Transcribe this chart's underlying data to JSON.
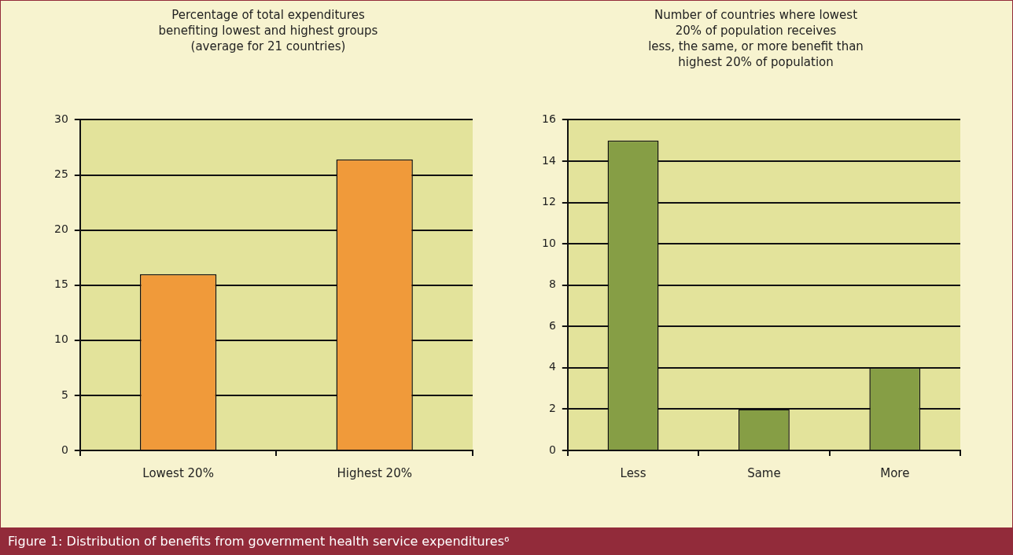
{
  "chart_data": [
    {
      "type": "bar",
      "title": "Percentage of total expenditures\nbenefiting lowest and highest groups\n(average for 21 countries)",
      "categories": [
        "Lowest 20%",
        "Highest 20%"
      ],
      "values": [
        16,
        26.4
      ],
      "color": "#f09a3a",
      "ylim": [
        0,
        30
      ],
      "yticks": [
        0,
        5,
        10,
        15,
        20,
        25,
        30
      ],
      "grid": "y",
      "annotations": [
        "Figure 1: Distribution of benefits from government health service expenditures⁶"
      ]
    },
    {
      "type": "bar",
      "title": "Number of countries where lowest\n20% of population receives\nless, the same, or more benefit than\nhighest 20% of population",
      "categories": [
        "Less",
        "Same",
        "More"
      ],
      "values": [
        15,
        2,
        4
      ],
      "color": "#869e45",
      "ylim": [
        0,
        16
      ],
      "yticks": [
        0,
        2,
        4,
        6,
        8,
        10,
        12,
        14,
        16
      ],
      "grid": "y"
    }
  ]
}
